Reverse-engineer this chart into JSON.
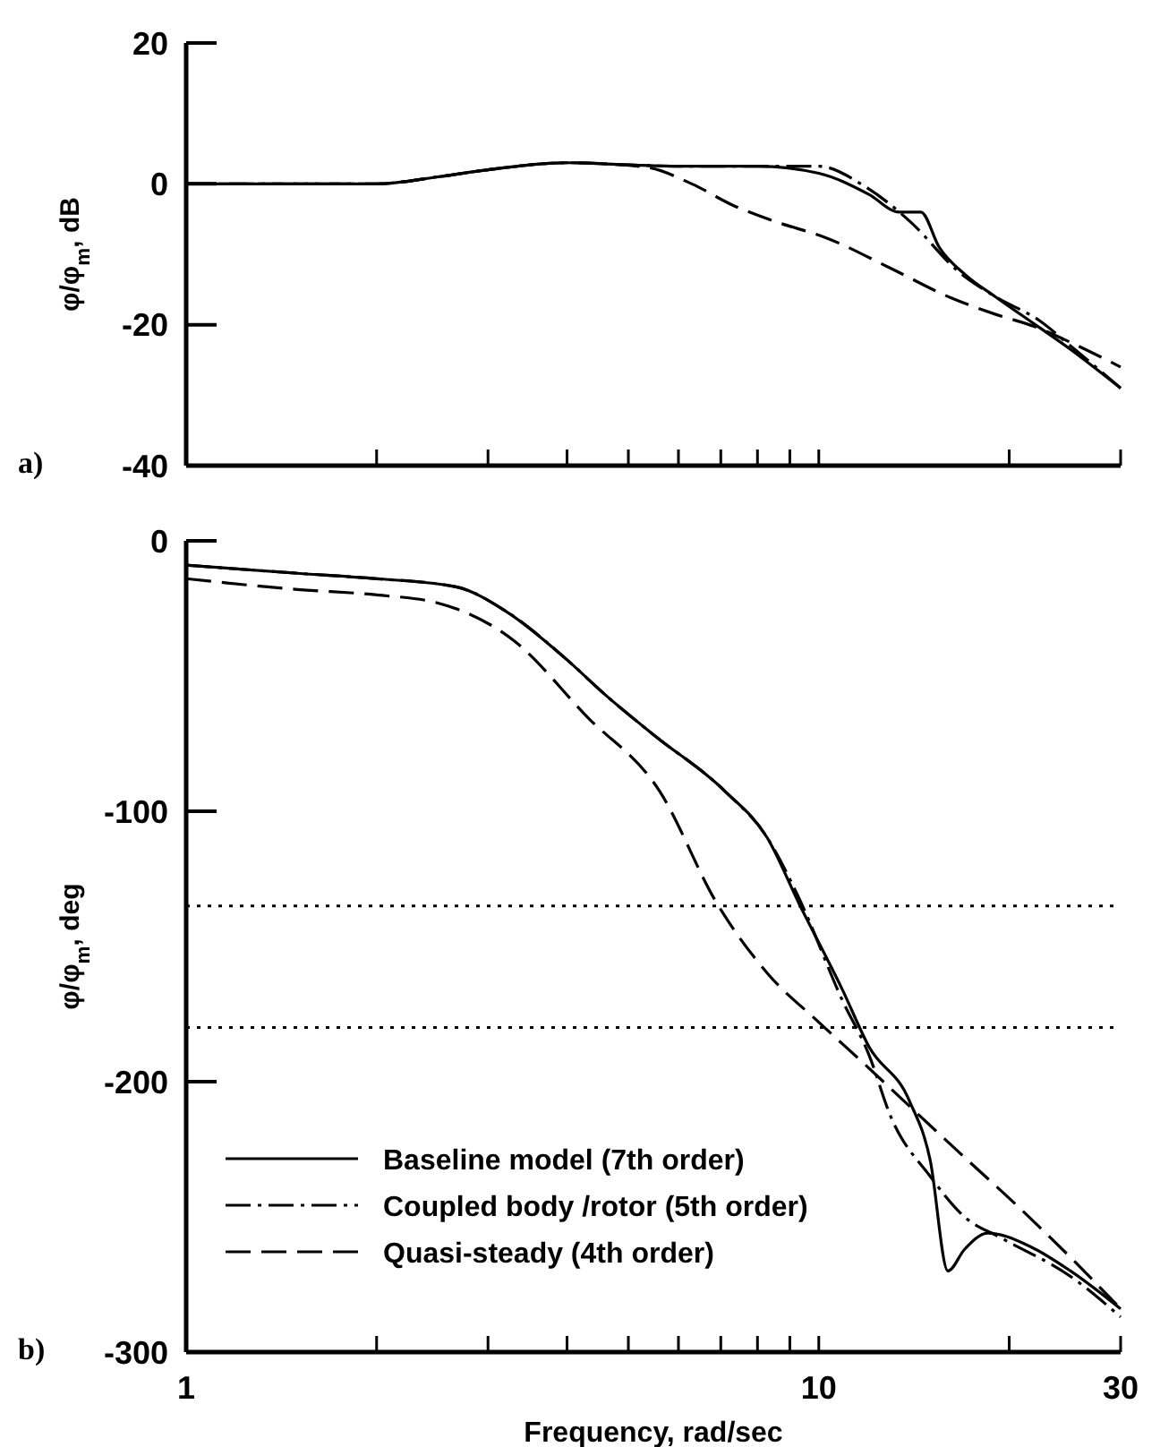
{
  "chart_data": [
    {
      "type": "line",
      "ylabel": "φ/φ$_{m}$, dB",
      "annotations": [
        "a)"
      ],
      "log": "x",
      "xlim": [
        1,
        30
      ],
      "ylim": [
        -40,
        20
      ],
      "yticks": [
        20,
        0,
        -20,
        -40
      ],
      "xticks": [
        {
          "value": 1,
          "label": null
        },
        {
          "value": 2,
          "label": null
        },
        {
          "value": 3,
          "label": null
        },
        {
          "value": 4,
          "label": null
        },
        {
          "value": 5,
          "label": null
        },
        {
          "value": 6,
          "label": null
        },
        {
          "value": 7,
          "label": null
        },
        {
          "value": 8,
          "label": null
        },
        {
          "value": 9,
          "label": null
        },
        {
          "value": 10,
          "label": null
        },
        {
          "value": 20,
          "label": null
        },
        {
          "value": 30,
          "label": null
        }
      ],
      "tick_labels": "y",
      "grid": false,
      "legend": false,
      "series": [
        {
          "color": "#000000",
          "line_style": "solid",
          "x": [
            1,
            1.5,
            2,
            2.5,
            3,
            4,
            5,
            6,
            8,
            10,
            12,
            13.4,
            14.5,
            15.5,
            17.1,
            19,
            22,
            25,
            30
          ],
          "values": [
            0,
            0,
            0,
            1,
            2,
            3,
            2.7,
            2.5,
            2.5,
            1.5,
            -1.5,
            -4,
            -4,
            -9,
            -13,
            -16,
            -20,
            -23.5,
            -29
          ]
        },
        {
          "color": "#000000",
          "line_style": "dashdot",
          "x": [
            1,
            1.5,
            2,
            2.5,
            3,
            4,
            5,
            6,
            8,
            10,
            11.8,
            14,
            16.6,
            19,
            22.4,
            25,
            30
          ],
          "values": [
            0,
            0,
            0,
            1,
            2,
            3,
            2.7,
            2.5,
            2.5,
            2.5,
            -0.3,
            -5.5,
            -12.4,
            -16,
            -19.5,
            -23,
            -29
          ]
        },
        {
          "color": "#000000",
          "line_style": "dashed",
          "x": [
            1,
            1.5,
            2,
            2.5,
            3,
            4,
            5.3,
            6.3,
            7.3,
            8.5,
            10.3,
            13,
            16.2,
            19,
            22,
            25,
            30
          ],
          "values": [
            0,
            0,
            0,
            1,
            2,
            3,
            2.4,
            0,
            -3,
            -5.3,
            -7.7,
            -12,
            -16.2,
            -18.5,
            -20.3,
            -22.5,
            -26
          ]
        }
      ]
    },
    {
      "type": "line",
      "ylabel": "φ/φ$_{m}$, deg",
      "xlabel": "Frequency, rad/sec",
      "annotations": [
        "b)"
      ],
      "log": "x",
      "xlim": [
        1,
        30
      ],
      "ylim": [
        -300,
        0
      ],
      "yticks": [
        0,
        -100,
        -200,
        -300
      ],
      "xticks": [
        1,
        {
          "value": 2,
          "label": null
        },
        {
          "value": 3,
          "label": null
        },
        {
          "value": 4,
          "label": null
        },
        {
          "value": 5,
          "label": null
        },
        {
          "value": 6,
          "label": null
        },
        {
          "value": 7,
          "label": null
        },
        {
          "value": 8,
          "label": null
        },
        {
          "value": 9,
          "label": null
        },
        10,
        {
          "value": 20,
          "label": null
        },
        30
      ],
      "grid": false,
      "legend": "bottom left",
      "ref_lines": [
        {
          "axis": "y",
          "value": -135,
          "color": "#000000",
          "line_style": "dotted"
        },
        {
          "axis": "y",
          "value": -180,
          "color": "#000000",
          "line_style": "dotted"
        }
      ],
      "series": [
        {
          "name": "Baseline model (7th order)",
          "color": "#000000",
          "line_style": "solid",
          "x": [
            1,
            1.5,
            2,
            2.67,
            3.2,
            4,
            4.6,
            5.5,
            7.1,
            8.3,
            9.3,
            10.9,
            12,
            13.9,
            15,
            16,
            17,
            18.5,
            21.6,
            25,
            30
          ],
          "values": [
            -9,
            -12,
            -14,
            -17,
            -26,
            -44,
            -57,
            -72,
            -92.5,
            -110,
            -134,
            -166,
            -187,
            -207,
            -229,
            -270,
            -262,
            -256,
            -261,
            -270,
            -284
          ]
        },
        {
          "name": "Coupled body /rotor (5th  order)",
          "color": "#000000",
          "line_style": "dashdot",
          "x": [
            1,
            1.5,
            2,
            2.67,
            3.2,
            4,
            4.6,
            5.5,
            7.1,
            8.3,
            9.3,
            10.9,
            12,
            13,
            15,
            17,
            19.5,
            25,
            30
          ],
          "values": [
            -9,
            -12,
            -14,
            -17,
            -26,
            -44,
            -57,
            -72,
            -92.5,
            -110,
            -132,
            -170,
            -190,
            -213,
            -235,
            -250,
            -258,
            -272,
            -287
          ]
        },
        {
          "name": "Quasi-steady (4th order)",
          "color": "#000000",
          "line_style": "dashed",
          "x": [
            1,
            1.5,
            2,
            2.5,
            3.3,
            4.3,
            5.6,
            6.9,
            8.3,
            10,
            12,
            13.9,
            17,
            20.4,
            25,
            30
          ],
          "values": [
            -14,
            -18,
            -20,
            -23,
            -37,
            -65,
            -92.5,
            -134,
            -160,
            -178,
            -195,
            -209,
            -228,
            -245,
            -265,
            -284
          ]
        }
      ]
    }
  ]
}
